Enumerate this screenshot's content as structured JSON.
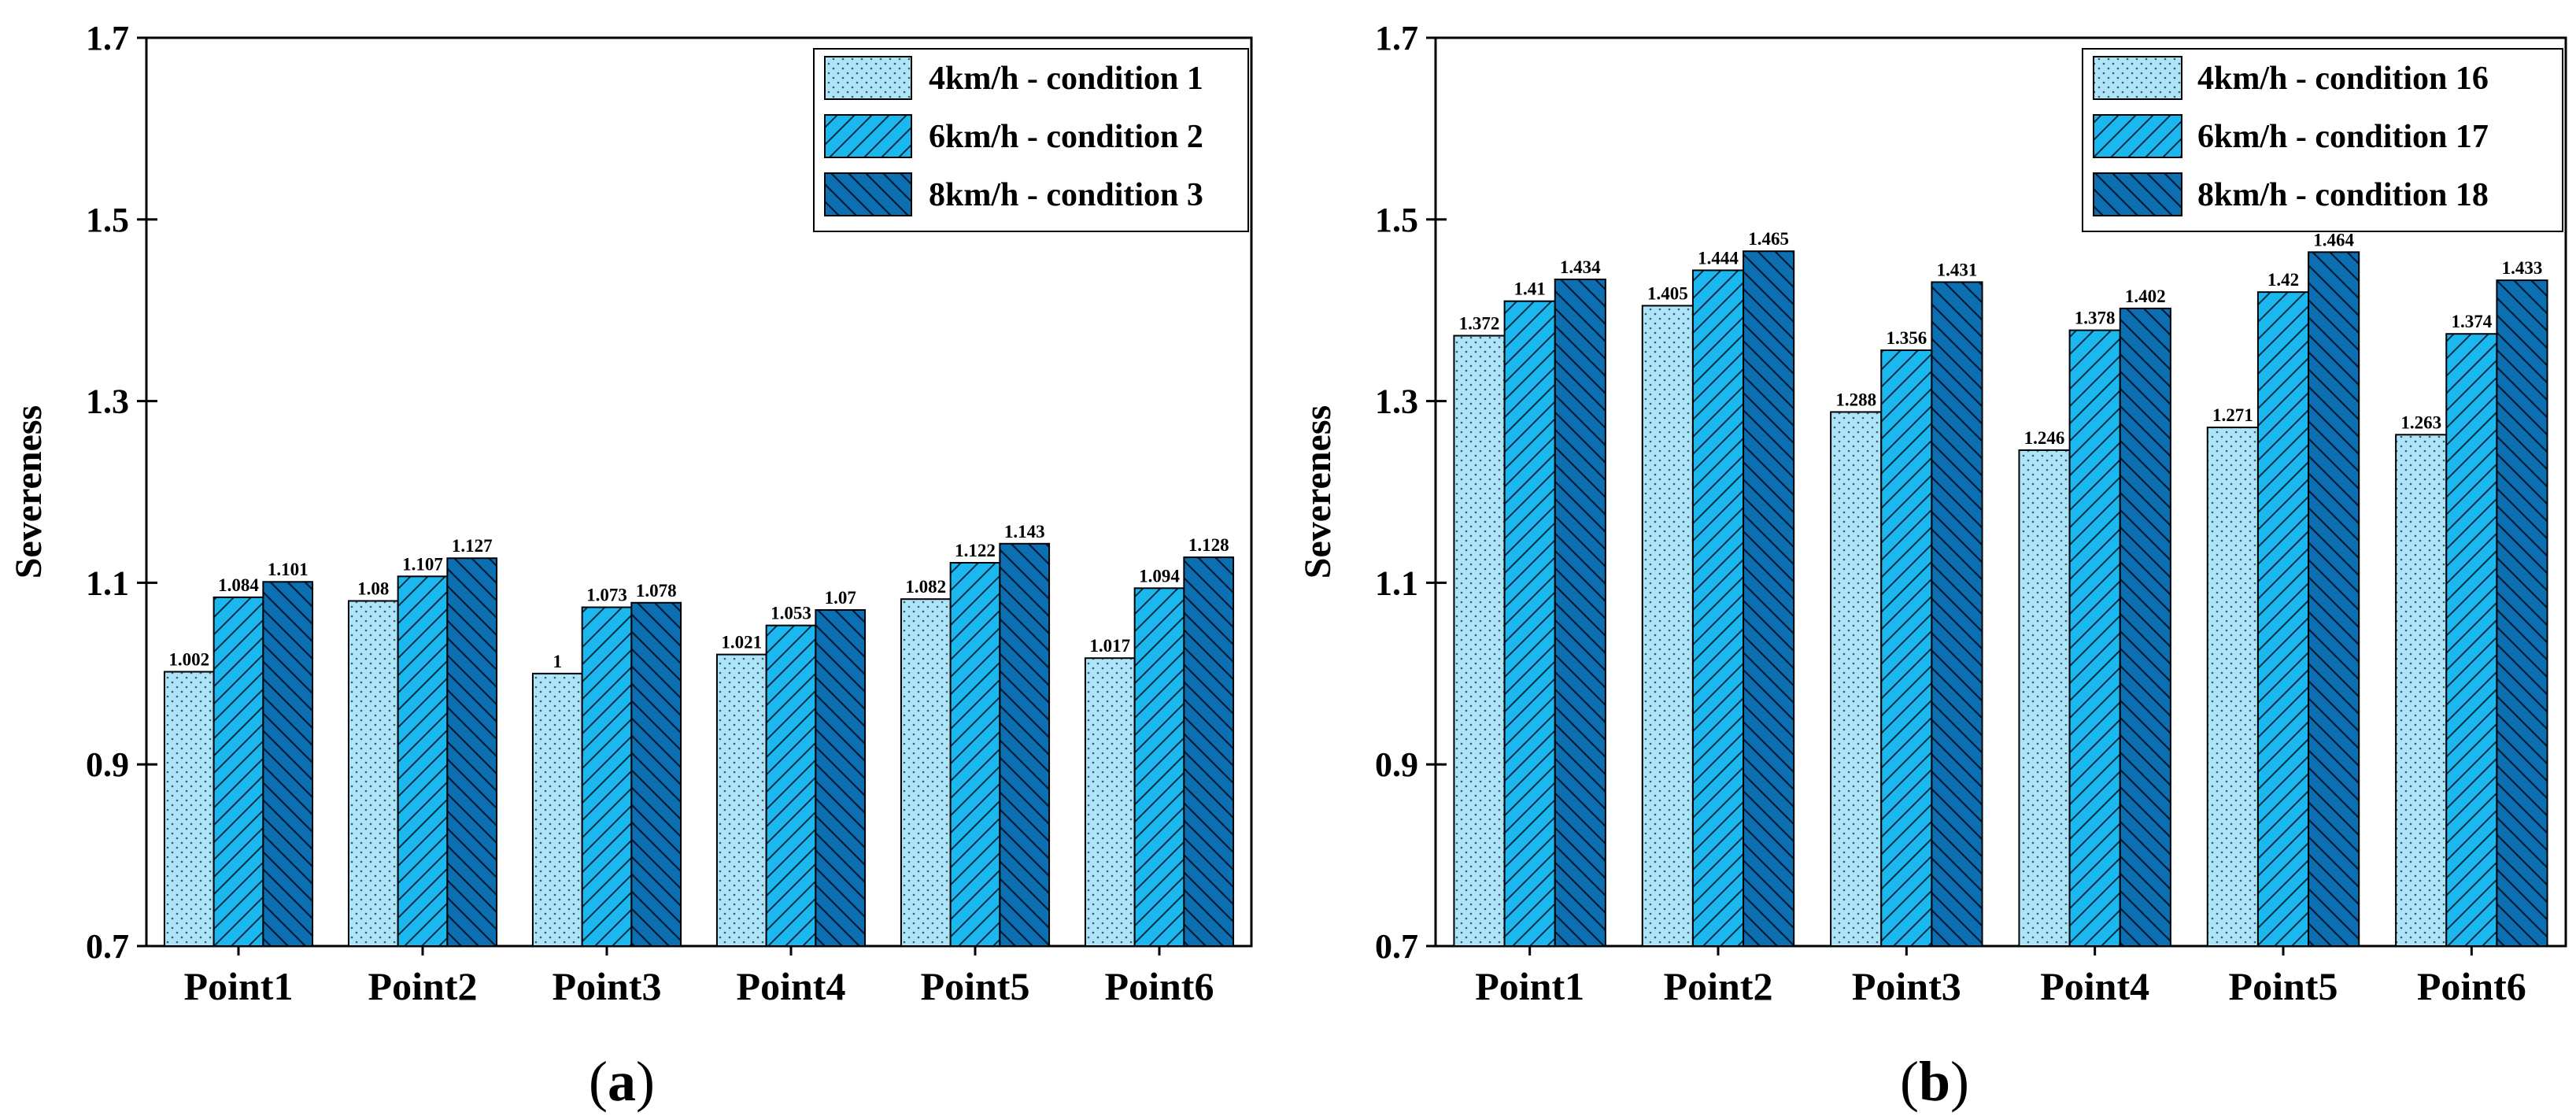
{
  "colors": {
    "series": [
      "#aee4f7",
      "#1ab8ef",
      "#0b6fb1"
    ],
    "axis": "#000000"
  },
  "chart_data": [
    {
      "type": "bar",
      "panel_label": "a",
      "ylabel": "Severeness",
      "xlabel": "",
      "ylim": [
        0.7,
        1.7
      ],
      "yticks": [
        0.7,
        0.9,
        1.1,
        1.3,
        1.5,
        1.7
      ],
      "ytick_labels": [
        "0.7",
        "0.9",
        "1.1",
        "1.3",
        "1.5",
        "1.7"
      ],
      "legend_position": "top-right",
      "categories": [
        "Point1",
        "Point2",
        "Point3",
        "Point4",
        "Point5",
        "Point6"
      ],
      "series": [
        {
          "name": "4km/h - condition 1",
          "values": [
            1.002,
            1.08,
            1.0,
            1.021,
            1.082,
            1.017
          ],
          "labels": [
            "1.002",
            "1.08",
            "1",
            "1.021",
            "1.082",
            "1.017"
          ]
        },
        {
          "name": "6km/h - condition 2",
          "values": [
            1.084,
            1.107,
            1.073,
            1.053,
            1.122,
            1.094
          ],
          "labels": [
            "1.084",
            "1.107",
            "1.073",
            "1.053",
            "1.122",
            "1.094"
          ]
        },
        {
          "name": "8km/h - condition 3",
          "values": [
            1.101,
            1.127,
            1.078,
            1.07,
            1.143,
            1.128
          ],
          "labels": [
            "1.101",
            "1.127",
            "1.078",
            "1.07",
            "1.143",
            "1.128"
          ]
        }
      ]
    },
    {
      "type": "bar",
      "panel_label": "b",
      "ylabel": "Severeness",
      "xlabel": "",
      "ylim": [
        0.7,
        1.7
      ],
      "yticks": [
        0.7,
        0.9,
        1.1,
        1.3,
        1.5,
        1.7
      ],
      "ytick_labels": [
        "0.7",
        "0.9",
        "1.1",
        "1.3",
        "1.5",
        "1.7"
      ],
      "legend_position": "top-right",
      "categories": [
        "Point1",
        "Point2",
        "Point3",
        "Point4",
        "Point5",
        "Point6"
      ],
      "series": [
        {
          "name": "4km/h - condition 16",
          "values": [
            1.372,
            1.405,
            1.288,
            1.246,
            1.271,
            1.263
          ],
          "labels": [
            "1.372",
            "1.405",
            "1.288",
            "1.246",
            "1.271",
            "1.263"
          ]
        },
        {
          "name": "6km/h - condition 17",
          "values": [
            1.41,
            1.444,
            1.356,
            1.378,
            1.42,
            1.374
          ],
          "labels": [
            "1.41",
            "1.444",
            "1.356",
            "1.378",
            "1.42",
            "1.374"
          ]
        },
        {
          "name": "8km/h - condition 18",
          "values": [
            1.434,
            1.465,
            1.431,
            1.402,
            1.464,
            1.433
          ],
          "labels": [
            "1.434",
            "1.465",
            "1.431",
            "1.402",
            "1.464",
            "1.433"
          ]
        }
      ]
    }
  ]
}
